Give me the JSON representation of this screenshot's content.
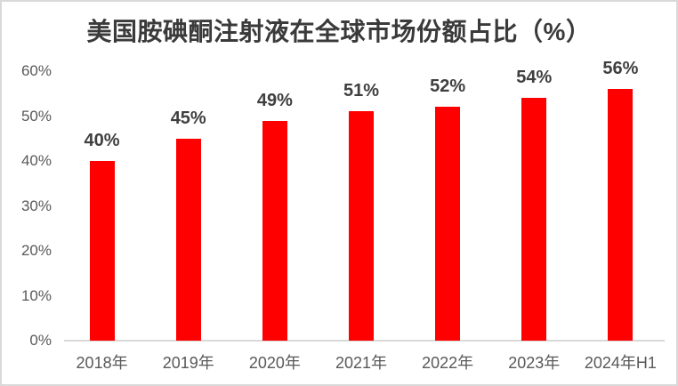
{
  "chart_data": {
    "type": "bar",
    "title": "美国胺碘酮注射液在全球市场份额占比（%）",
    "categories": [
      "2018年",
      "2019年",
      "2020年",
      "2021年",
      "2022年",
      "2023年",
      "2024年H1"
    ],
    "values": [
      40,
      45,
      49,
      51,
      52,
      54,
      56
    ],
    "value_labels": [
      "40%",
      "45%",
      "49%",
      "51%",
      "52%",
      "54%",
      "56%"
    ],
    "xlabel": "",
    "ylabel": "",
    "ylim": [
      0,
      60
    ],
    "y_tick_values": [
      0,
      10,
      20,
      30,
      40,
      50,
      60
    ],
    "y_tick_labels": [
      "0%",
      "10%",
      "20%",
      "30%",
      "40%",
      "50%",
      "60%"
    ],
    "grid": false,
    "legend_position": "none",
    "colors": {
      "bar": "#ff0000",
      "title_text": "#3a3a3a",
      "value_label_text": "#3f3f3f",
      "tick_text": "#595959",
      "axis_line": "#d9d9d9",
      "frame_border": "#d9d9d9",
      "background": "#ffffff"
    }
  }
}
